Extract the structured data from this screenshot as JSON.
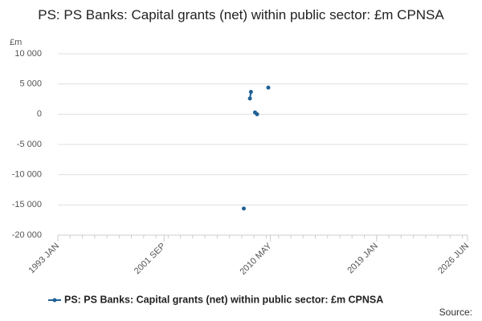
{
  "chart_data": {
    "type": "line",
    "title": "PS: PS Banks: Capital grants (net) within public sector: £m CPNSA",
    "y_label": "£m",
    "source": "Source:",
    "x": [
      "2008 MAR",
      "2008 JUN",
      "2008 SEP",
      "2008 OCT",
      "2008 DEC",
      "2009 FEB",
      "2009 APR",
      "2009 JUL",
      "2010 MAR"
    ],
    "series": [
      {
        "name": "PS: PS Banks: Capital grants (net) within public sector: £m CPNSA",
        "color": "#206095",
        "values": [
          -15600,
          null,
          2600,
          3700,
          null,
          300,
          0,
          null,
          4400
        ]
      }
    ],
    "xlim": [
      "1993 JAN",
      "2026 JUN"
    ],
    "xticks": [
      "1993 JAN",
      "2001 SEP",
      "2010 MAY",
      "2019 JAN",
      "2026 JUN"
    ],
    "ylim": [
      -20000,
      10000
    ],
    "yticks": [
      {
        "value": 10000,
        "label": "10 000"
      },
      {
        "value": 5000,
        "label": "5 000"
      },
      0,
      {
        "value": -5000,
        "label": "-5 000"
      },
      {
        "value": -10000,
        "label": "-10 000"
      },
      {
        "value": -15000,
        "label": "-15 000"
      },
      {
        "value": -20000,
        "label": "-20 000"
      }
    ],
    "grid": true,
    "legend": "bottom"
  }
}
